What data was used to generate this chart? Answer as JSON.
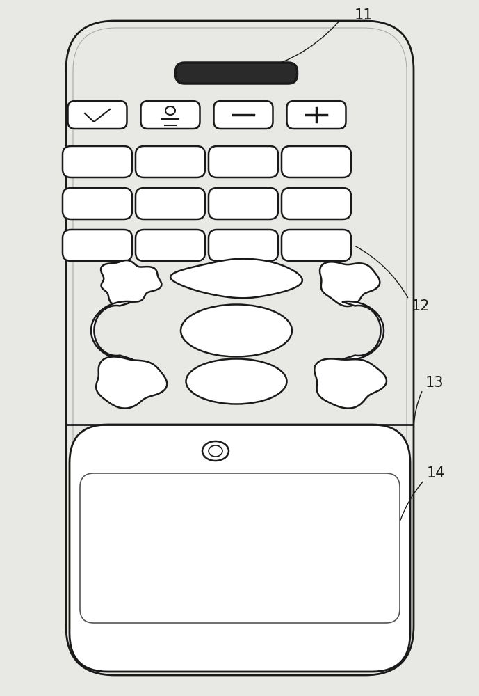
{
  "bg_color": "#e8e8e4",
  "body_color": "#e8e8e4",
  "line_color": "#1a1a1a",
  "white": "#ffffff",
  "dark": "#1a1a1a"
}
